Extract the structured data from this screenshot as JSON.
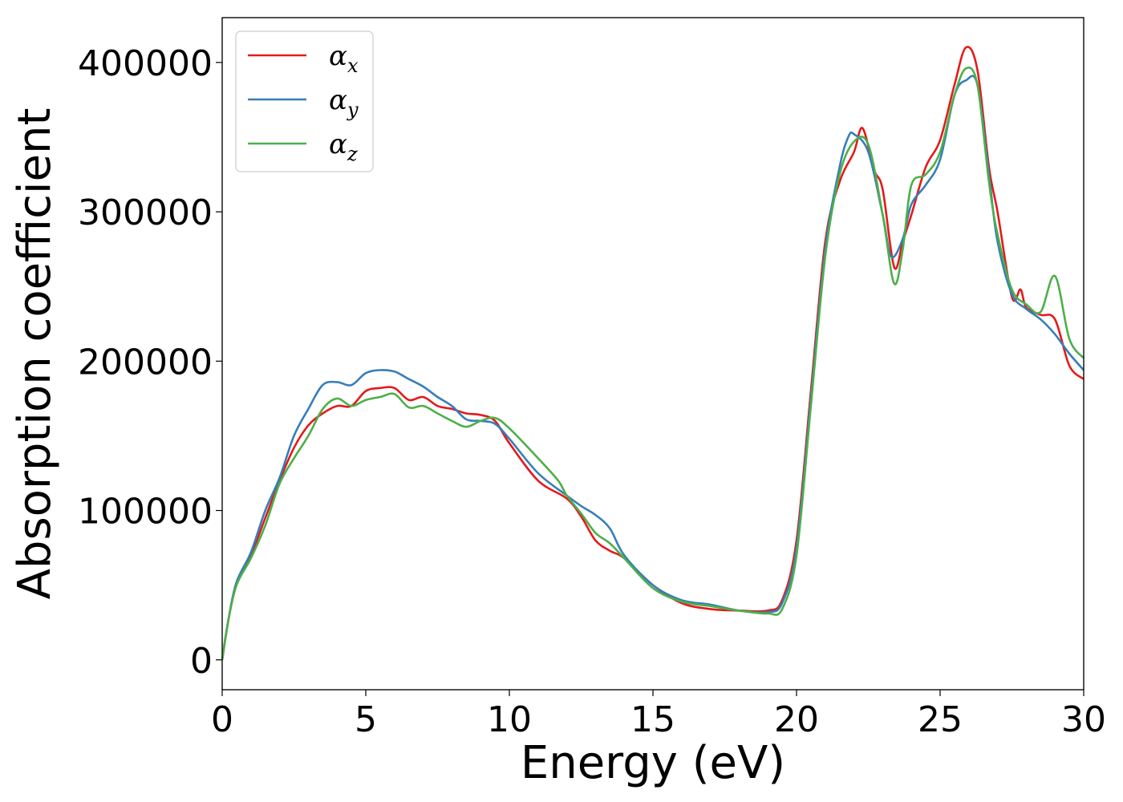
{
  "chart_data": {
    "type": "line",
    "title": "",
    "xlabel": "Energy (eV)",
    "ylabel": "Absorption coefficient",
    "xlim": [
      0,
      30
    ],
    "ylim": [
      -20000,
      430000
    ],
    "xticks": [
      0,
      5,
      10,
      15,
      20,
      25,
      30
    ],
    "xtick_labels": [
      "0",
      "5",
      "10",
      "15",
      "20",
      "25",
      "30"
    ],
    "yticks": [
      0,
      100000,
      200000,
      300000,
      400000
    ],
    "ytick_labels": [
      "0",
      "100000",
      "200000",
      "300000",
      "400000"
    ],
    "grid": false,
    "legend_position": "upper-left",
    "series": [
      {
        "name": "αx",
        "legend_base": "α",
        "legend_sub": "x",
        "color": "#e41a1c",
        "x": [
          0,
          0.2,
          0.5,
          1.0,
          1.5,
          2.0,
          2.5,
          3.0,
          3.5,
          4.0,
          4.5,
          5.0,
          5.5,
          6.0,
          6.5,
          7.0,
          7.5,
          8.0,
          8.5,
          9.0,
          9.5,
          10.0,
          11.0,
          12.0,
          12.5,
          13.0,
          13.5,
          14.0,
          15.0,
          16.0,
          17.0,
          18.0,
          19.0,
          19.5,
          20.0,
          20.5,
          21.0,
          21.5,
          22.0,
          22.3,
          22.7,
          23.0,
          23.4,
          23.7,
          24.0,
          24.5,
          25.0,
          25.5,
          25.9,
          26.3,
          26.7,
          27.0,
          27.5,
          27.8,
          28.0,
          28.5,
          29.0,
          29.5,
          30.0
        ],
        "y": [
          0,
          25000,
          52000,
          70000,
          95000,
          120000,
          142000,
          157000,
          165000,
          170000,
          170000,
          180000,
          182000,
          182000,
          174000,
          176000,
          170000,
          168000,
          165000,
          164000,
          160000,
          145000,
          120000,
          108000,
          96000,
          80000,
          73000,
          68000,
          50000,
          38000,
          34000,
          33000,
          33000,
          40000,
          80000,
          180000,
          280000,
          320000,
          340000,
          356000,
          328000,
          315000,
          263000,
          280000,
          298000,
          330000,
          348000,
          385000,
          410000,
          395000,
          330000,
          300000,
          243000,
          248000,
          236000,
          231000,
          228000,
          197000,
          188000
        ]
      },
      {
        "name": "αy",
        "legend_base": "α",
        "legend_sub": "y",
        "color": "#377eb8",
        "x": [
          0,
          0.2,
          0.5,
          1.0,
          1.5,
          2.0,
          2.5,
          3.0,
          3.5,
          4.0,
          4.5,
          5.0,
          5.5,
          6.0,
          6.5,
          7.0,
          7.5,
          8.0,
          8.5,
          9.0,
          9.5,
          10.0,
          11.0,
          12.0,
          12.5,
          13.0,
          13.5,
          14.0,
          15.0,
          16.0,
          17.0,
          18.0,
          19.0,
          19.5,
          20.0,
          20.5,
          21.0,
          21.5,
          21.8,
          22.0,
          22.5,
          23.0,
          23.3,
          23.7,
          24.0,
          24.5,
          25.0,
          25.5,
          25.9,
          26.3,
          26.7,
          27.0,
          27.5,
          28.0,
          28.5,
          29.0,
          29.5,
          30.0
        ],
        "y": [
          0,
          25000,
          52000,
          72000,
          100000,
          122000,
          150000,
          168000,
          184000,
          186000,
          184000,
          192000,
          194000,
          193000,
          188000,
          183000,
          176000,
          170000,
          161000,
          160000,
          158000,
          148000,
          125000,
          110000,
          103000,
          97000,
          88000,
          70000,
          50000,
          40000,
          37000,
          33000,
          32000,
          38000,
          75000,
          175000,
          275000,
          330000,
          350000,
          352000,
          340000,
          298000,
          270000,
          282000,
          305000,
          318000,
          335000,
          378000,
          388000,
          385000,
          325000,
          280000,
          245000,
          235000,
          228000,
          218000,
          205000,
          194000
        ]
      },
      {
        "name": "αz",
        "legend_base": "α",
        "legend_sub": "z",
        "color": "#4daf4a",
        "x": [
          0,
          0.2,
          0.5,
          1.0,
          1.5,
          2.0,
          2.5,
          3.0,
          3.5,
          4.0,
          4.5,
          5.0,
          5.5,
          6.0,
          6.5,
          7.0,
          7.5,
          8.0,
          8.5,
          9.0,
          9.5,
          10.0,
          11.0,
          11.7,
          12.0,
          12.5,
          13.0,
          13.5,
          14.0,
          15.0,
          16.0,
          17.0,
          18.0,
          19.0,
          19.5,
          20.0,
          20.5,
          21.0,
          21.5,
          22.0,
          22.5,
          23.0,
          23.4,
          23.7,
          24.0,
          24.5,
          25.0,
          25.5,
          25.9,
          26.3,
          26.7,
          27.0,
          27.5,
          28.0,
          28.5,
          29.0,
          29.5,
          30.0
        ],
        "y": [
          0,
          25000,
          50000,
          68000,
          90000,
          118000,
          135000,
          150000,
          168000,
          175000,
          170000,
          174000,
          176000,
          178000,
          169000,
          170000,
          165000,
          160000,
          156000,
          160000,
          162000,
          155000,
          135000,
          120000,
          110000,
          98000,
          85000,
          78000,
          68000,
          48000,
          39000,
          36000,
          33000,
          31000,
          34000,
          70000,
          170000,
          270000,
          325000,
          347000,
          345000,
          298000,
          252000,
          275000,
          318000,
          325000,
          340000,
          378000,
          396000,
          385000,
          320000,
          285000,
          248000,
          238000,
          233000,
          257000,
          215000,
          202000
        ]
      }
    ]
  }
}
